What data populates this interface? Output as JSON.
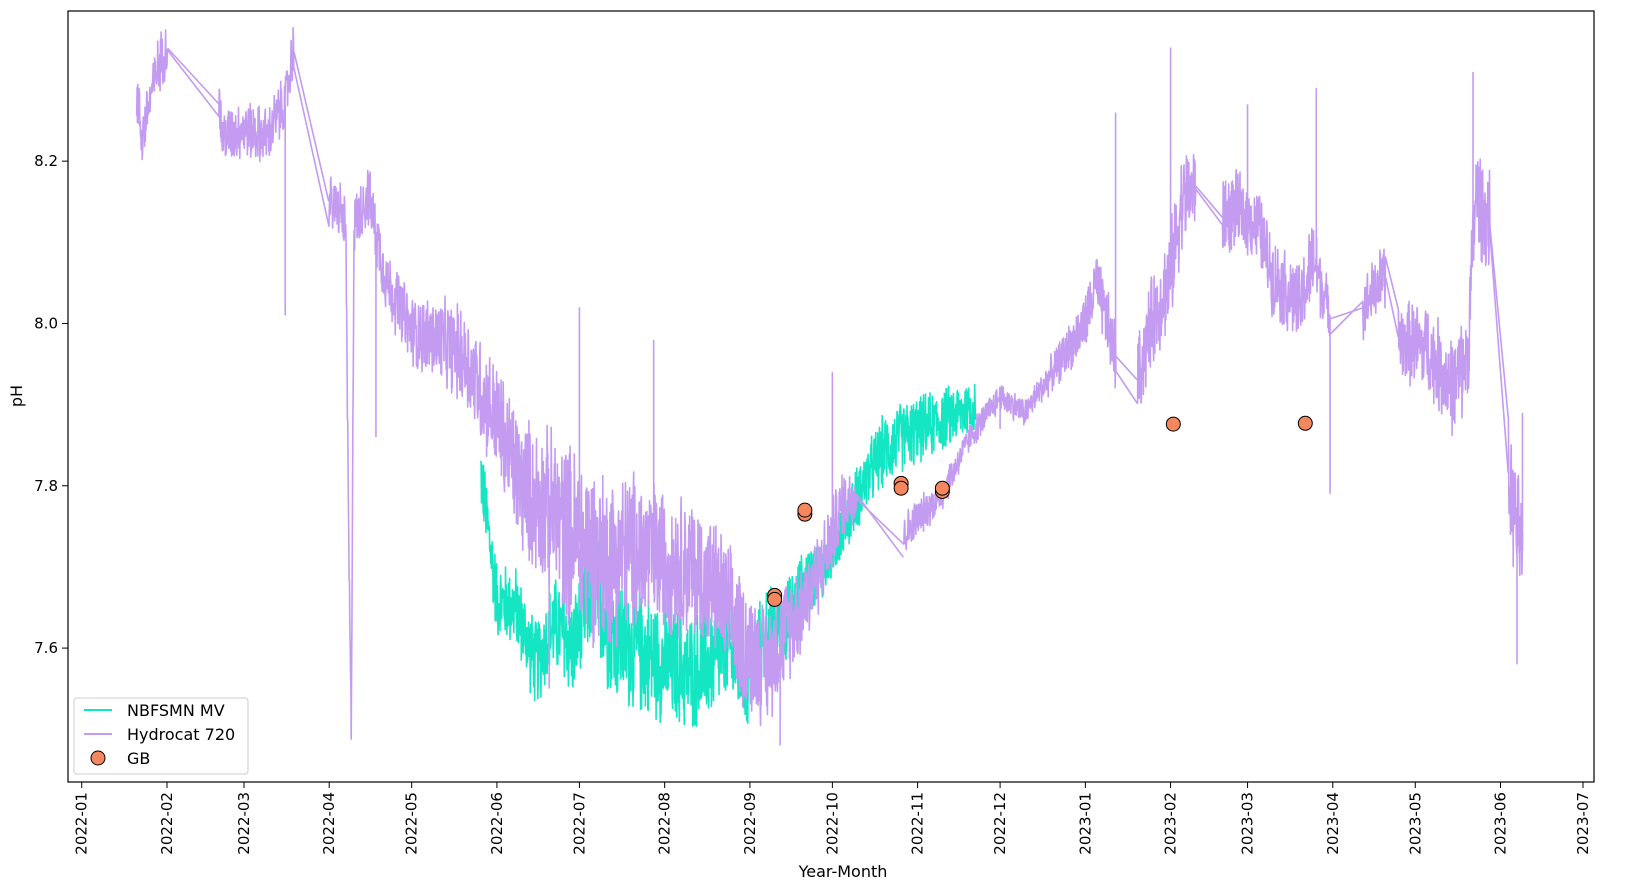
{
  "chart_data": {
    "type": "line",
    "title": "",
    "xlabel": "Year-Month",
    "ylabel": "pH",
    "x_range": [
      "2021-12-27",
      "2023-07-05"
    ],
    "ylim": [
      7.435,
      8.385
    ],
    "x_ticks": [
      "2022-01",
      "2022-02",
      "2022-03",
      "2022-04",
      "2022-05",
      "2022-06",
      "2022-07",
      "2022-08",
      "2022-09",
      "2022-10",
      "2022-11",
      "2022-12",
      "2023-01",
      "2023-02",
      "2023-03",
      "2023-04",
      "2023-05",
      "2023-06",
      "2023-07"
    ],
    "y_ticks": [
      "7.6",
      "7.8",
      "8.0",
      "8.2"
    ],
    "grid": false,
    "legend_position": "lower-left",
    "series": [
      {
        "name": "NBFSMN MV",
        "type": "line",
        "color": "#14e6c3",
        "points": [
          [
            "2022-05-26",
            7.82
          ],
          [
            "2022-06-01",
            7.66
          ],
          [
            "2022-06-08",
            7.65
          ],
          [
            "2022-06-15",
            7.58
          ],
          [
            "2022-06-22",
            7.63
          ],
          [
            "2022-06-29",
            7.6
          ],
          [
            "2022-07-06",
            7.68
          ],
          [
            "2022-07-12",
            7.62
          ],
          [
            "2022-07-20",
            7.6
          ],
          [
            "2022-07-27",
            7.59
          ],
          [
            "2022-08-03",
            7.58
          ],
          [
            "2022-08-10",
            7.57
          ],
          [
            "2022-08-17",
            7.58
          ],
          [
            "2022-08-24",
            7.6
          ],
          [
            "2022-08-31",
            7.56
          ],
          [
            "2022-09-07",
            7.62
          ],
          [
            "2022-09-14",
            7.63
          ],
          [
            "2022-09-21",
            7.68
          ],
          [
            "2022-09-28",
            7.7
          ],
          [
            "2022-10-05",
            7.75
          ],
          [
            "2022-10-12",
            7.8
          ],
          [
            "2022-10-19",
            7.84
          ],
          [
            "2022-10-26",
            7.86
          ],
          [
            "2022-11-02",
            7.87
          ],
          [
            "2022-11-09",
            7.88
          ],
          [
            "2022-11-16",
            7.89
          ],
          [
            "2022-11-22",
            7.9
          ]
        ],
        "noise": [
          [
            "2022-05-26",
            0.05
          ],
          [
            "2022-06-15",
            0.06
          ],
          [
            "2022-07-15",
            0.09
          ],
          [
            "2022-08-15",
            0.08
          ],
          [
            "2022-09-10",
            0.06
          ],
          [
            "2022-10-01",
            0.04
          ],
          [
            "2022-10-20",
            0.05
          ],
          [
            "2022-11-22",
            0.04
          ]
        ]
      },
      {
        "name": "Hydrocat 720",
        "type": "line",
        "color": "#c39bf0",
        "points": [
          [
            "2022-01-21",
            8.28
          ],
          [
            "2022-01-23",
            8.23
          ],
          [
            "2022-01-26",
            8.28
          ],
          [
            "2022-01-29",
            8.32
          ],
          [
            "2022-02-01",
            8.34
          ],
          [
            "2022-02-20",
            8.27
          ],
          [
            "2022-02-21",
            8.23
          ],
          [
            "2022-03-01",
            8.24
          ],
          [
            "2022-03-10",
            8.23
          ],
          [
            "2022-03-12",
            8.25
          ],
          [
            "2022-03-16",
            8.27
          ],
          [
            "2022-03-19",
            8.34
          ],
          [
            "2022-03-25",
            8.18
          ],
          [
            "2022-04-01",
            8.15
          ],
          [
            "2022-04-05",
            8.14
          ],
          [
            "2022-04-07",
            8.12
          ],
          [
            "2022-04-08",
            7.76
          ],
          [
            "2022-04-09",
            7.49
          ],
          [
            "2022-04-10",
            8.12
          ],
          [
            "2022-04-15",
            8.16
          ],
          [
            "2022-04-22",
            8.05
          ],
          [
            "2022-05-01",
            7.99
          ],
          [
            "2022-05-10",
            7.98
          ],
          [
            "2022-05-20",
            7.96
          ],
          [
            "2022-06-01",
            7.88
          ],
          [
            "2022-06-10",
            7.8
          ],
          [
            "2022-06-20",
            7.77
          ],
          [
            "2022-07-01",
            7.73
          ],
          [
            "2022-07-10",
            7.71
          ],
          [
            "2022-07-20",
            7.72
          ],
          [
            "2022-08-01",
            7.71
          ],
          [
            "2022-08-10",
            7.7
          ],
          [
            "2022-08-20",
            7.67
          ],
          [
            "2022-08-31",
            7.6
          ],
          [
            "2022-09-07",
            7.58
          ],
          [
            "2022-09-14",
            7.62
          ],
          [
            "2022-09-21",
            7.66
          ],
          [
            "2022-09-28",
            7.71
          ],
          [
            "2022-10-01",
            7.74
          ],
          [
            "2022-10-05",
            7.78
          ],
          [
            "2022-10-10",
            7.79
          ],
          [
            "2022-10-26",
            7.6
          ],
          [
            "2022-10-27",
            7.74
          ],
          [
            "2022-11-01",
            7.76
          ],
          [
            "2022-11-10",
            7.79
          ],
          [
            "2022-11-20",
            7.86
          ],
          [
            "2022-12-01",
            7.91
          ],
          [
            "2022-12-10",
            7.89
          ],
          [
            "2022-12-20",
            7.94
          ],
          [
            "2023-01-01",
            8.0
          ],
          [
            "2023-01-05",
            8.05
          ],
          [
            "2023-01-12",
            7.96
          ],
          [
            "2023-01-20",
            7.93
          ],
          [
            "2023-01-25",
            8.0
          ],
          [
            "2023-02-01",
            8.06
          ],
          [
            "2023-02-05",
            8.15
          ],
          [
            "2023-02-10",
            8.17
          ],
          [
            "2023-02-20",
            8.13
          ],
          [
            "2023-02-25",
            8.14
          ],
          [
            "2023-03-05",
            8.12
          ],
          [
            "2023-03-10",
            8.06
          ],
          [
            "2023-03-20",
            8.02
          ],
          [
            "2023-03-25",
            8.08
          ],
          [
            "2023-03-31",
            8.01
          ],
          [
            "2023-04-02",
            7.97
          ],
          [
            "2023-04-12",
            8.02
          ],
          [
            "2023-04-20",
            8.06
          ],
          [
            "2023-04-25",
            7.98
          ],
          [
            "2023-05-05",
            7.97
          ],
          [
            "2023-05-15",
            7.92
          ],
          [
            "2023-05-20",
            7.96
          ],
          [
            "2023-05-23",
            8.16
          ],
          [
            "2023-05-28",
            8.12
          ],
          [
            "2023-06-01",
            7.9
          ],
          [
            "2023-06-05",
            7.78
          ],
          [
            "2023-06-09",
            7.72
          ]
        ],
        "noise": [
          [
            "2022-01-21",
            0.04
          ],
          [
            "2022-04-07",
            0.04
          ],
          [
            "2022-05-01",
            0.05
          ],
          [
            "2022-06-01",
            0.08
          ],
          [
            "2022-07-01",
            0.13
          ],
          [
            "2022-08-01",
            0.1
          ],
          [
            "2022-09-01",
            0.09
          ],
          [
            "2022-09-25",
            0.06
          ],
          [
            "2022-10-10",
            0.04
          ],
          [
            "2022-10-26",
            0.0
          ],
          [
            "2022-10-27",
            0.03
          ],
          [
            "2022-11-20",
            0.02
          ],
          [
            "2022-12-15",
            0.02
          ],
          [
            "2023-01-01",
            0.04
          ],
          [
            "2023-02-01",
            0.07
          ],
          [
            "2023-03-01",
            0.05
          ],
          [
            "2023-03-25",
            0.06
          ],
          [
            "2023-04-01",
            0.03
          ],
          [
            "2023-05-01",
            0.06
          ],
          [
            "2023-06-09",
            0.08
          ]
        ],
        "spikes": [
          [
            "2022-03-16",
            8.01
          ],
          [
            "2022-04-18",
            7.86
          ],
          [
            "2022-06-20",
            7.55
          ],
          [
            "2022-07-01",
            8.02
          ],
          [
            "2022-07-28",
            7.98
          ],
          [
            "2022-09-12",
            7.48
          ],
          [
            "2022-10-01",
            7.94
          ],
          [
            "2022-12-01",
            7.87
          ],
          [
            "2023-01-12",
            8.26
          ],
          [
            "2023-02-01",
            8.34
          ],
          [
            "2023-03-01",
            8.27
          ],
          [
            "2023-03-31",
            7.79
          ],
          [
            "2023-03-26",
            8.29
          ],
          [
            "2023-05-22",
            8.31
          ],
          [
            "2023-06-07",
            7.58
          ],
          [
            "2023-06-09",
            7.89
          ]
        ]
      },
      {
        "name": "GB",
        "type": "scatter",
        "color": "#f5875f",
        "points": [
          [
            "2022-09-10",
            7.665
          ],
          [
            "2022-09-10",
            7.66
          ],
          [
            "2022-09-21",
            7.765
          ],
          [
            "2022-09-21",
            7.77
          ],
          [
            "2022-10-26",
            7.803
          ],
          [
            "2022-10-26",
            7.797
          ],
          [
            "2022-11-10",
            7.793
          ],
          [
            "2022-11-10",
            7.797
          ],
          [
            "2023-02-02",
            7.876
          ],
          [
            "2023-03-22",
            7.877
          ]
        ]
      }
    ]
  }
}
